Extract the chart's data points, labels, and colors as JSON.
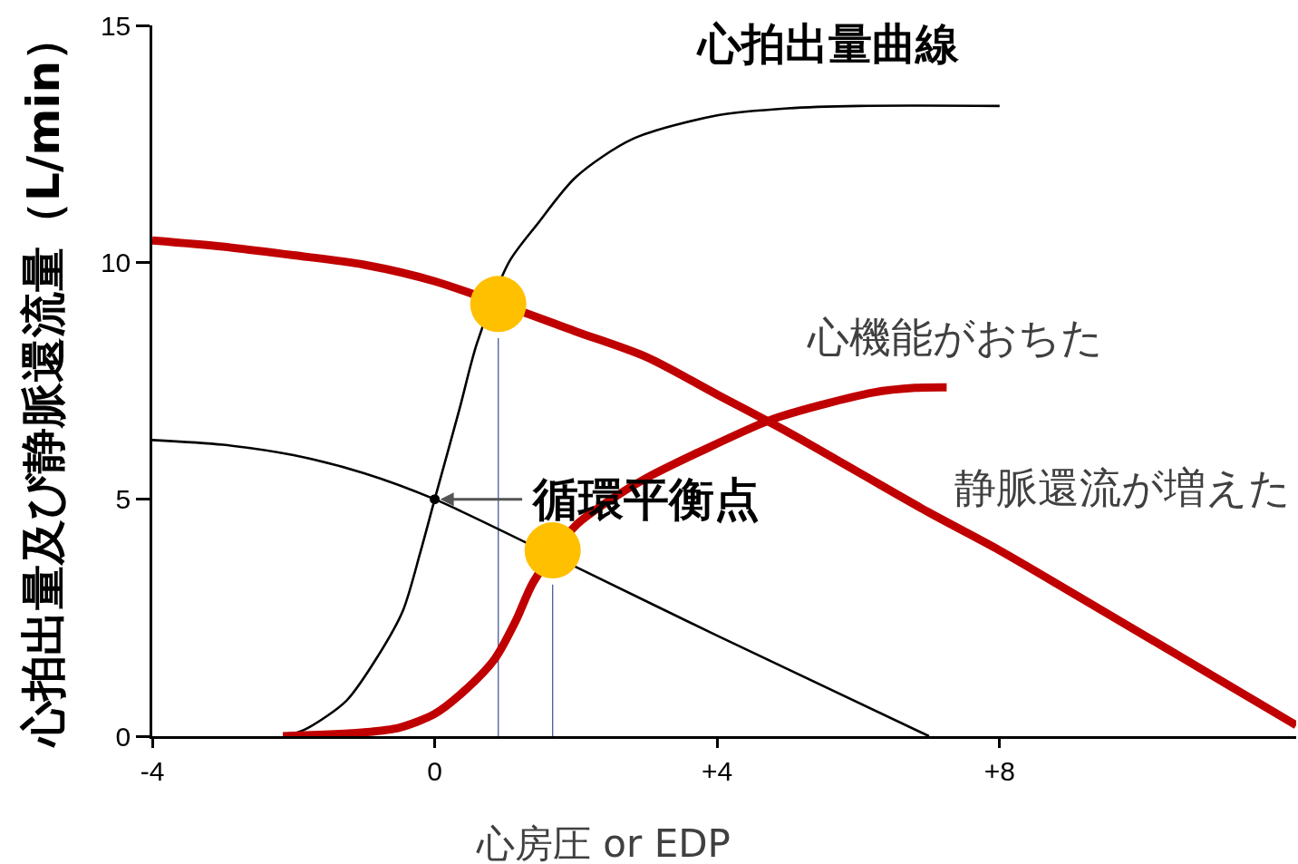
{
  "chart_data": {
    "type": "line",
    "xlabel": "心房圧 or EDP",
    "ylabel": "心拍出量及び静脈還流量（L/min）",
    "xlim": [
      -4,
      12.2
    ],
    "xticks": [
      -4,
      0,
      {
        "value": 4,
        "label": "+4"
      },
      {
        "value": 8,
        "label": "+8"
      }
    ],
    "ylim": [
      0,
      15
    ],
    "yticks": [
      0,
      5,
      10,
      15
    ],
    "grid": false,
    "marker": "none",
    "line_style": "solid",
    "series": [
      {
        "color": "#4a5a9a",
        "x": [
          0.9,
          0.9
        ],
        "values": [
          0,
          8.4
        ]
      },
      {
        "color": "#4a5a9a",
        "x": [
          1.67,
          1.67
        ],
        "values": [
          0,
          3.2
        ]
      },
      {
        "color": "#000000",
        "x": [
          -2.1,
          -1.8,
          -1.25,
          -0.8,
          -0.45,
          -0.2,
          0,
          0.35,
          0.6,
          1.05,
          1.45,
          2.0,
          2.8,
          4.0,
          5.0,
          6.0,
          8.0
        ],
        "values": [
          0,
          0.17,
          0.75,
          1.7,
          2.65,
          3.9,
          5.0,
          6.9,
          8.3,
          10.0,
          10.8,
          11.8,
          12.6,
          13.1,
          13.25,
          13.3,
          13.3
        ]
      },
      {
        "color": "#000000",
        "x": [
          -4,
          -3,
          -2,
          -1,
          0,
          2,
          4,
          7.0
        ],
        "values": [
          6.25,
          6.15,
          5.93,
          5.55,
          5.0,
          3.57,
          2.12,
          0
        ]
      },
      {
        "color": "#c00000",
        "x": [
          -4,
          -3,
          -2,
          -1,
          0,
          2,
          3,
          4,
          5,
          6,
          7,
          8,
          9,
          10,
          11,
          12.2
        ],
        "values": [
          10.46,
          10.33,
          10.15,
          9.95,
          9.6,
          8.54,
          8.0,
          7.21,
          6.42,
          5.57,
          4.72,
          3.92,
          3.05,
          2.17,
          1.29,
          0.23
        ]
      },
      {
        "color": "#c00000",
        "x": [
          -2.15,
          -1,
          -0.5,
          0,
          0.4,
          0.85,
          1.15,
          1.4,
          2.0,
          2.5,
          3.0,
          3.75,
          4.75,
          5.5,
          6.2,
          6.8,
          7.25
        ],
        "values": [
          0,
          0.08,
          0.18,
          0.47,
          0.93,
          1.63,
          2.44,
          3.26,
          4.45,
          5.0,
          5.45,
          6.0,
          6.67,
          7.0,
          7.25,
          7.35,
          7.36
        ]
      },
      {
        "type": "scatter",
        "marker": "circle",
        "color": "#ffc000",
        "x": [
          0.9,
          1.67
        ],
        "values": [
          9.12,
          3.92
        ]
      },
      {
        "type": "scatter",
        "marker": "circle",
        "color": "#000000",
        "x": [
          0
        ],
        "values": [
          5
        ]
      }
    ],
    "annotations": [
      "心拍出量曲線",
      "心機能がおちた",
      "静脈還流が増えた",
      {
        "text": "循環平衡点",
        "x": 0,
        "y": 5
      }
    ]
  }
}
